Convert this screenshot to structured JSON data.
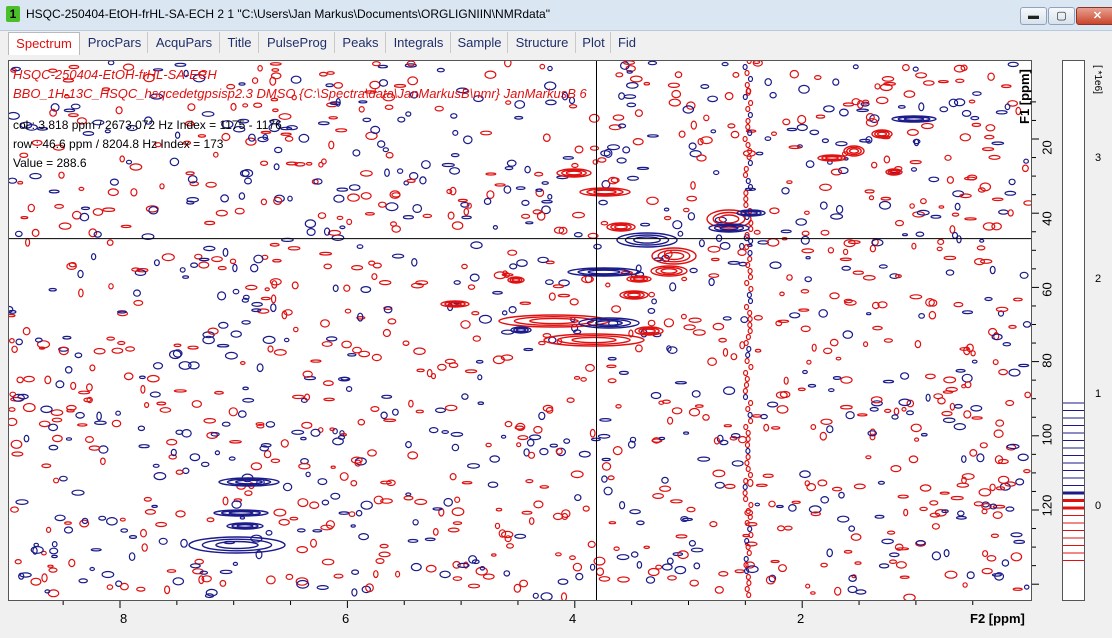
{
  "window": {
    "title": "HSQC-250404-EtOH-frHL-SA-ECH  2  1  \"C:\\Users\\Jan Markus\\Documents\\ORGLIGNIIN\\NMRdata\"",
    "app_icon_text": "1",
    "minimize_glyph": "▬",
    "maximize_glyph": "▢",
    "close_glyph": "✕"
  },
  "tabs": [
    {
      "label": "Spectrum"
    },
    {
      "label": "ProcPars"
    },
    {
      "label": "AcquPars"
    },
    {
      "label": "Title"
    },
    {
      "label": "PulseProg"
    },
    {
      "label": "Peaks"
    },
    {
      "label": "Integrals"
    },
    {
      "label": "Sample"
    },
    {
      "label": "Structure"
    },
    {
      "label": "Plot"
    },
    {
      "label": "Fid"
    }
  ],
  "spectrum": {
    "title_line1": "HSQC-250404-EtOH-frHL-SA-ECH",
    "title_line2": "BBO_1H-13C_HSQC_hsqcedetgpsisp2.3 DMSO {C:\\Spectra\\data\\JanMarkusB\\nmr} JanMarkusB 6",
    "cursor_col": "col : 3.818 ppm / 2673.072 Hz Index = 1175 - 1176",
    "cursor_row": "row : 46.6 ppm / 8204.8 Hz Index = 173",
    "cursor_value": "Value = 288.6",
    "cursor_f2_ppm": 3.818,
    "cursor_f1_ppm": 46.6,
    "positive_color": "#1a1a8a",
    "negative_color": "#e01010"
  },
  "axes": {
    "f2_label": "F2 [ppm]",
    "f1_label": "F1 [ppm]",
    "f2_ticks": [
      "8",
      "6",
      "4",
      "2"
    ],
    "f1_ticks": [
      "20",
      "40",
      "60",
      "80",
      "100",
      "120"
    ],
    "scale_label": "[ *1e6]",
    "scale_ticks": [
      "3",
      "2",
      "1",
      "0"
    ]
  }
}
